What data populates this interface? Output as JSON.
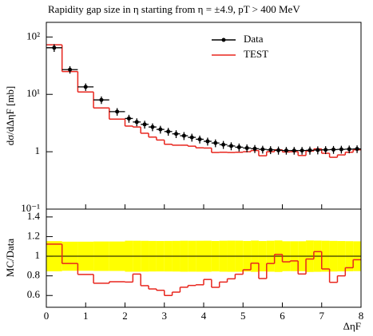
{
  "chart_data": [
    {
      "type": "histogram",
      "title": "Rapidity gap size in η starting from η = ±4.9, pT > 400 MeV",
      "ylabel": "dσ/dΔηF [mb]",
      "log_y": true,
      "legend": "upper right",
      "bins": [
        0,
        0.4,
        0.8,
        1.2,
        1.6,
        2.0,
        2.2,
        2.4,
        2.6,
        2.8,
        3.0,
        3.2,
        3.4,
        3.6,
        3.8,
        4.0,
        4.2,
        4.4,
        4.6,
        4.8,
        5.0,
        5.2,
        5.4,
        5.6,
        5.8,
        6.0,
        6.2,
        6.4,
        6.6,
        6.8,
        7.0,
        7.2,
        7.4,
        7.6,
        7.8,
        8.0
      ],
      "xlim": [
        0,
        8
      ],
      "xticks": [
        0,
        1,
        2,
        3,
        4,
        5,
        6,
        7,
        8
      ],
      "ylim": [
        0.1,
        180
      ],
      "yticks": [
        {
          "value": 0.1,
          "label": "10⁻¹"
        },
        1,
        {
          "value": 10,
          "label": "10¹"
        },
        {
          "value": 100,
          "label": "10²"
        }
      ],
      "series": [
        {
          "name": "Data",
          "color": "#000000",
          "style": "points",
          "values": [
            65,
            27,
            13.5,
            8,
            5,
            3.8,
            3.3,
            3.0,
            2.7,
            2.45,
            2.25,
            2.05,
            1.9,
            1.78,
            1.65,
            1.52,
            1.42,
            1.33,
            1.26,
            1.2,
            1.16,
            1.13,
            1.1,
            1.08,
            1.06,
            1.05,
            1.05,
            1.05,
            1.06,
            1.07,
            1.08,
            1.09,
            1.1,
            1.11,
            1.12
          ],
          "errors": [
            10,
            4,
            2,
            1.2,
            0.75,
            0.6,
            0.52,
            0.47,
            0.42,
            0.38,
            0.35,
            0.32,
            0.3,
            0.28,
            0.26,
            0.24,
            0.22,
            0.21,
            0.2,
            0.19,
            0.18,
            0.18,
            0.17,
            0.17,
            0.17,
            0.16,
            0.16,
            0.16,
            0.17,
            0.17,
            0.17,
            0.17,
            0.17,
            0.17,
            0.17
          ]
        },
        {
          "name": "TEST",
          "color": "#e8251d",
          "style": "step",
          "values": [
            73,
            25,
            11,
            5.8,
            3.7,
            2.8,
            2.7,
            2.1,
            1.8,
            1.6,
            1.35,
            1.3,
            1.3,
            1.25,
            1.17,
            1.16,
            0.97,
            0.98,
            0.97,
            0.98,
            1.0,
            1.05,
            0.85,
            1.0,
            1.08,
            0.99,
            1.0,
            0.86,
            1.03,
            1.12,
            0.94,
            0.8,
            0.88,
            0.98,
            1.08
          ]
        }
      ]
    },
    {
      "type": "ratio",
      "ylabel": "MC/Data",
      "xlabel": "ΔηF",
      "band_color": "#ffff00",
      "reference_line": 1,
      "ylim": [
        0.48,
        1.48
      ],
      "yticks": [
        0.6,
        0.8,
        1,
        1.2,
        1.4
      ]
    }
  ]
}
